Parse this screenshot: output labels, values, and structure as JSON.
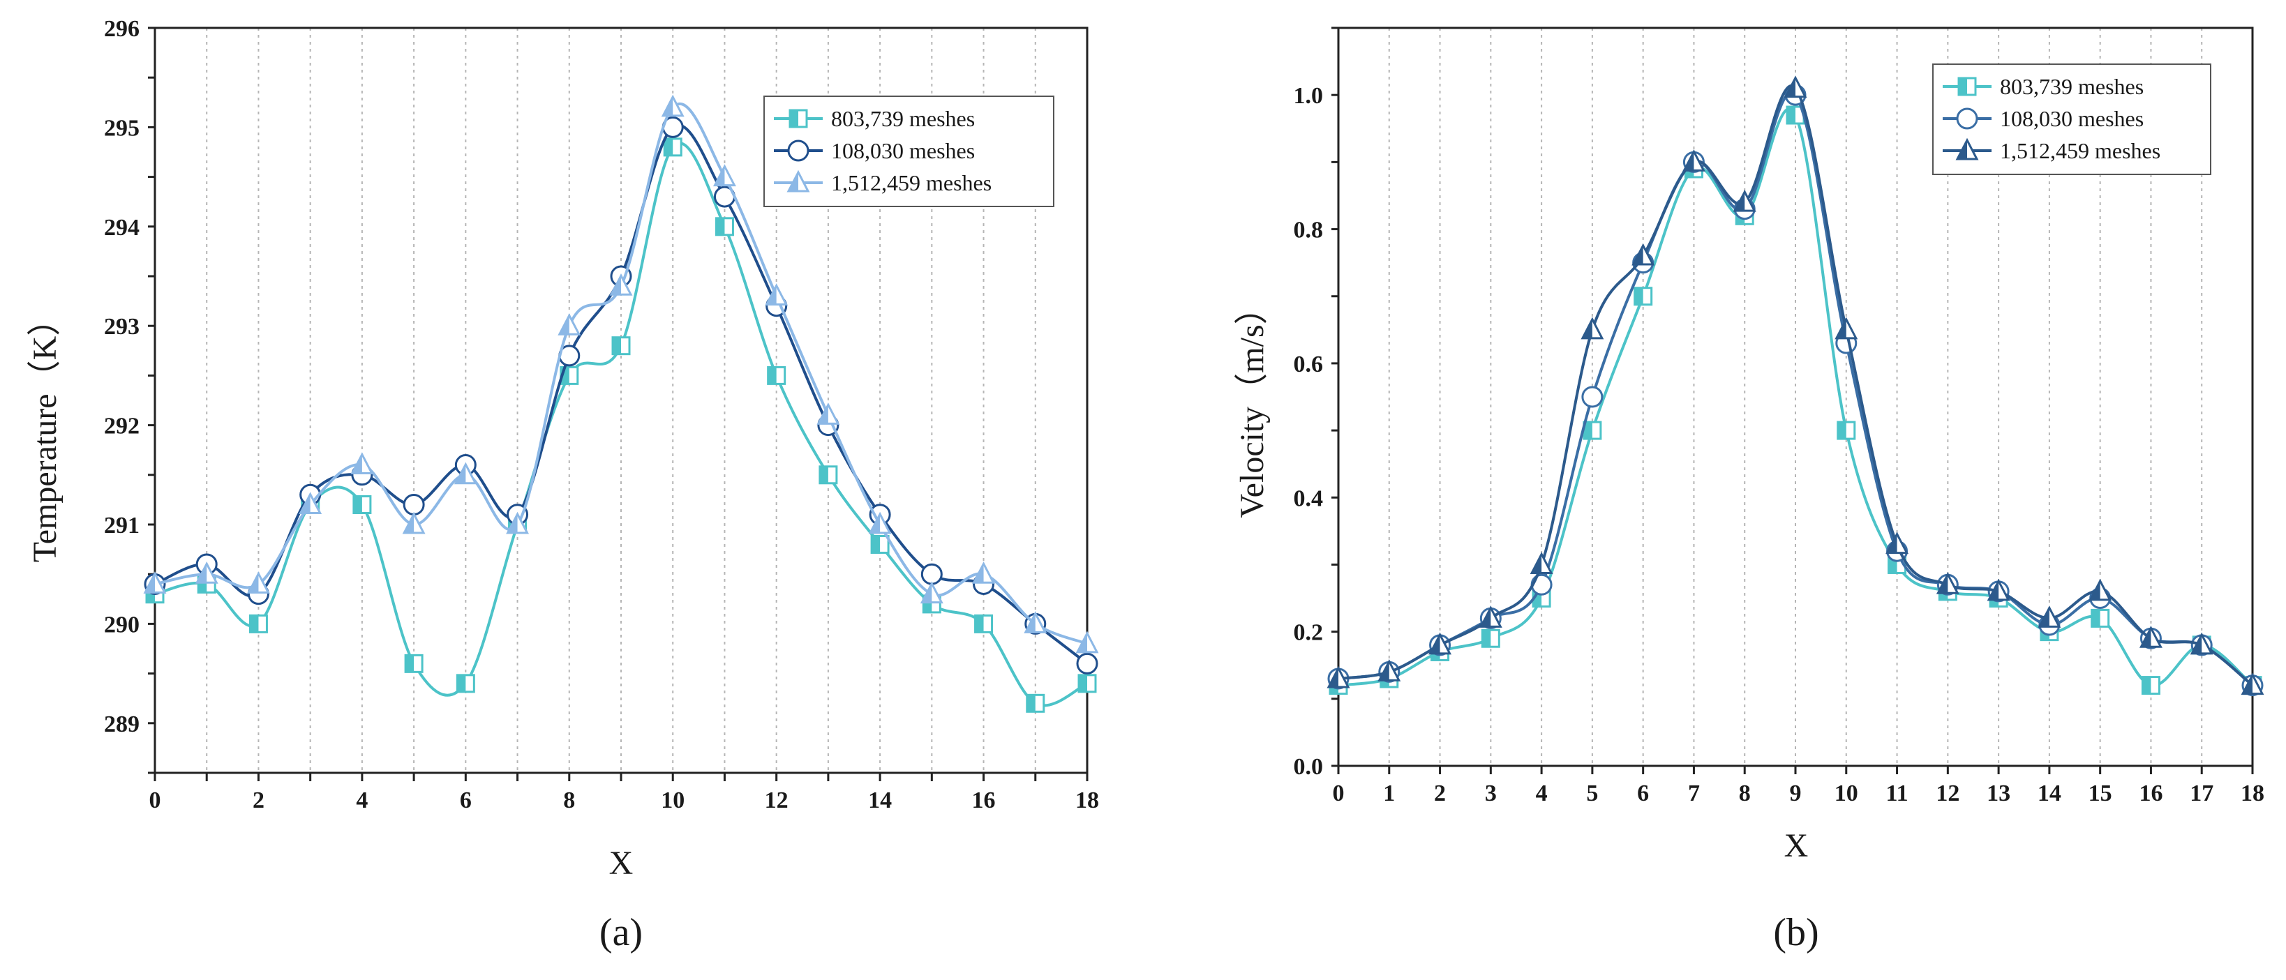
{
  "chart_data": [
    {
      "type": "line",
      "caption": "(a)",
      "xlabel": "X",
      "ylabel": "Temperature（K）",
      "xlim": [
        0,
        18
      ],
      "ylim": [
        288.5,
        296
      ],
      "xticks": [
        "0",
        "2",
        "4",
        "6",
        "8",
        "10",
        "12",
        "14",
        "16",
        "18"
      ],
      "yticks": [
        "289",
        "290",
        "291",
        "292",
        "293",
        "294",
        "295",
        "296"
      ],
      "legend_position": "top-right",
      "x": [
        0,
        1,
        2,
        3,
        4,
        5,
        6,
        7,
        8,
        9,
        10,
        11,
        12,
        13,
        14,
        15,
        16,
        17,
        18
      ],
      "series": [
        {
          "name": "803,739 meshes",
          "color": "#4cc3c8",
          "marker": "square",
          "values": [
            290.3,
            290.4,
            290.0,
            291.2,
            291.2,
            289.6,
            289.4,
            291.0,
            292.5,
            292.8,
            294.8,
            294.0,
            292.5,
            291.5,
            290.8,
            290.2,
            290.0,
            289.2,
            289.4
          ]
        },
        {
          "name": "108,030 meshes",
          "color": "#1f4e8c",
          "marker": "circle",
          "values": [
            290.4,
            290.6,
            290.3,
            291.3,
            291.5,
            291.2,
            291.6,
            291.1,
            292.7,
            293.5,
            295.0,
            294.3,
            293.2,
            292.0,
            291.1,
            290.5,
            290.4,
            290.0,
            289.6
          ]
        },
        {
          "name": "1,512,459 meshes",
          "color": "#8cb8e6",
          "marker": "triangle",
          "values": [
            290.4,
            290.5,
            290.4,
            291.2,
            291.6,
            291.0,
            291.5,
            291.0,
            293.0,
            293.4,
            295.2,
            294.5,
            293.3,
            292.1,
            291.0,
            290.3,
            290.5,
            290.0,
            289.8
          ]
        }
      ]
    },
    {
      "type": "line",
      "caption": "(b)",
      "xlabel": "X",
      "ylabel": "Velocity（m/s）",
      "xlim": [
        0,
        18
      ],
      "ylim": [
        0.0,
        1.1
      ],
      "xticks": [
        "0",
        "1",
        "2",
        "3",
        "4",
        "5",
        "6",
        "7",
        "8",
        "9",
        "10",
        "11",
        "12",
        "13",
        "14",
        "15",
        "16",
        "17",
        "18"
      ],
      "yticks": [
        "0.0",
        "0.2",
        "0.4",
        "0.6",
        "0.8",
        "1.0"
      ],
      "legend_position": "top-right",
      "x": [
        0,
        1,
        2,
        3,
        4,
        5,
        6,
        7,
        8,
        9,
        10,
        11,
        12,
        13,
        14,
        15,
        16,
        17,
        18
      ],
      "series": [
        {
          "name": "803,739 meshes",
          "color": "#4cc3c8",
          "marker": "square",
          "values": [
            0.12,
            0.13,
            0.17,
            0.19,
            0.25,
            0.5,
            0.7,
            0.89,
            0.82,
            0.97,
            0.5,
            0.3,
            0.26,
            0.25,
            0.2,
            0.22,
            0.12,
            0.18,
            0.12
          ]
        },
        {
          "name": "108,030 meshes",
          "color": "#3a6ea5",
          "marker": "circle",
          "values": [
            0.13,
            0.14,
            0.18,
            0.22,
            0.27,
            0.55,
            0.75,
            0.9,
            0.83,
            1.0,
            0.63,
            0.32,
            0.27,
            0.26,
            0.21,
            0.25,
            0.19,
            0.18,
            0.12
          ]
        },
        {
          "name": "1,512,459 meshes",
          "color": "#2c5a8c",
          "marker": "triangle",
          "values": [
            0.13,
            0.14,
            0.18,
            0.22,
            0.3,
            0.65,
            0.76,
            0.9,
            0.84,
            1.01,
            0.65,
            0.33,
            0.27,
            0.26,
            0.22,
            0.26,
            0.19,
            0.18,
            0.12
          ]
        }
      ]
    }
  ]
}
